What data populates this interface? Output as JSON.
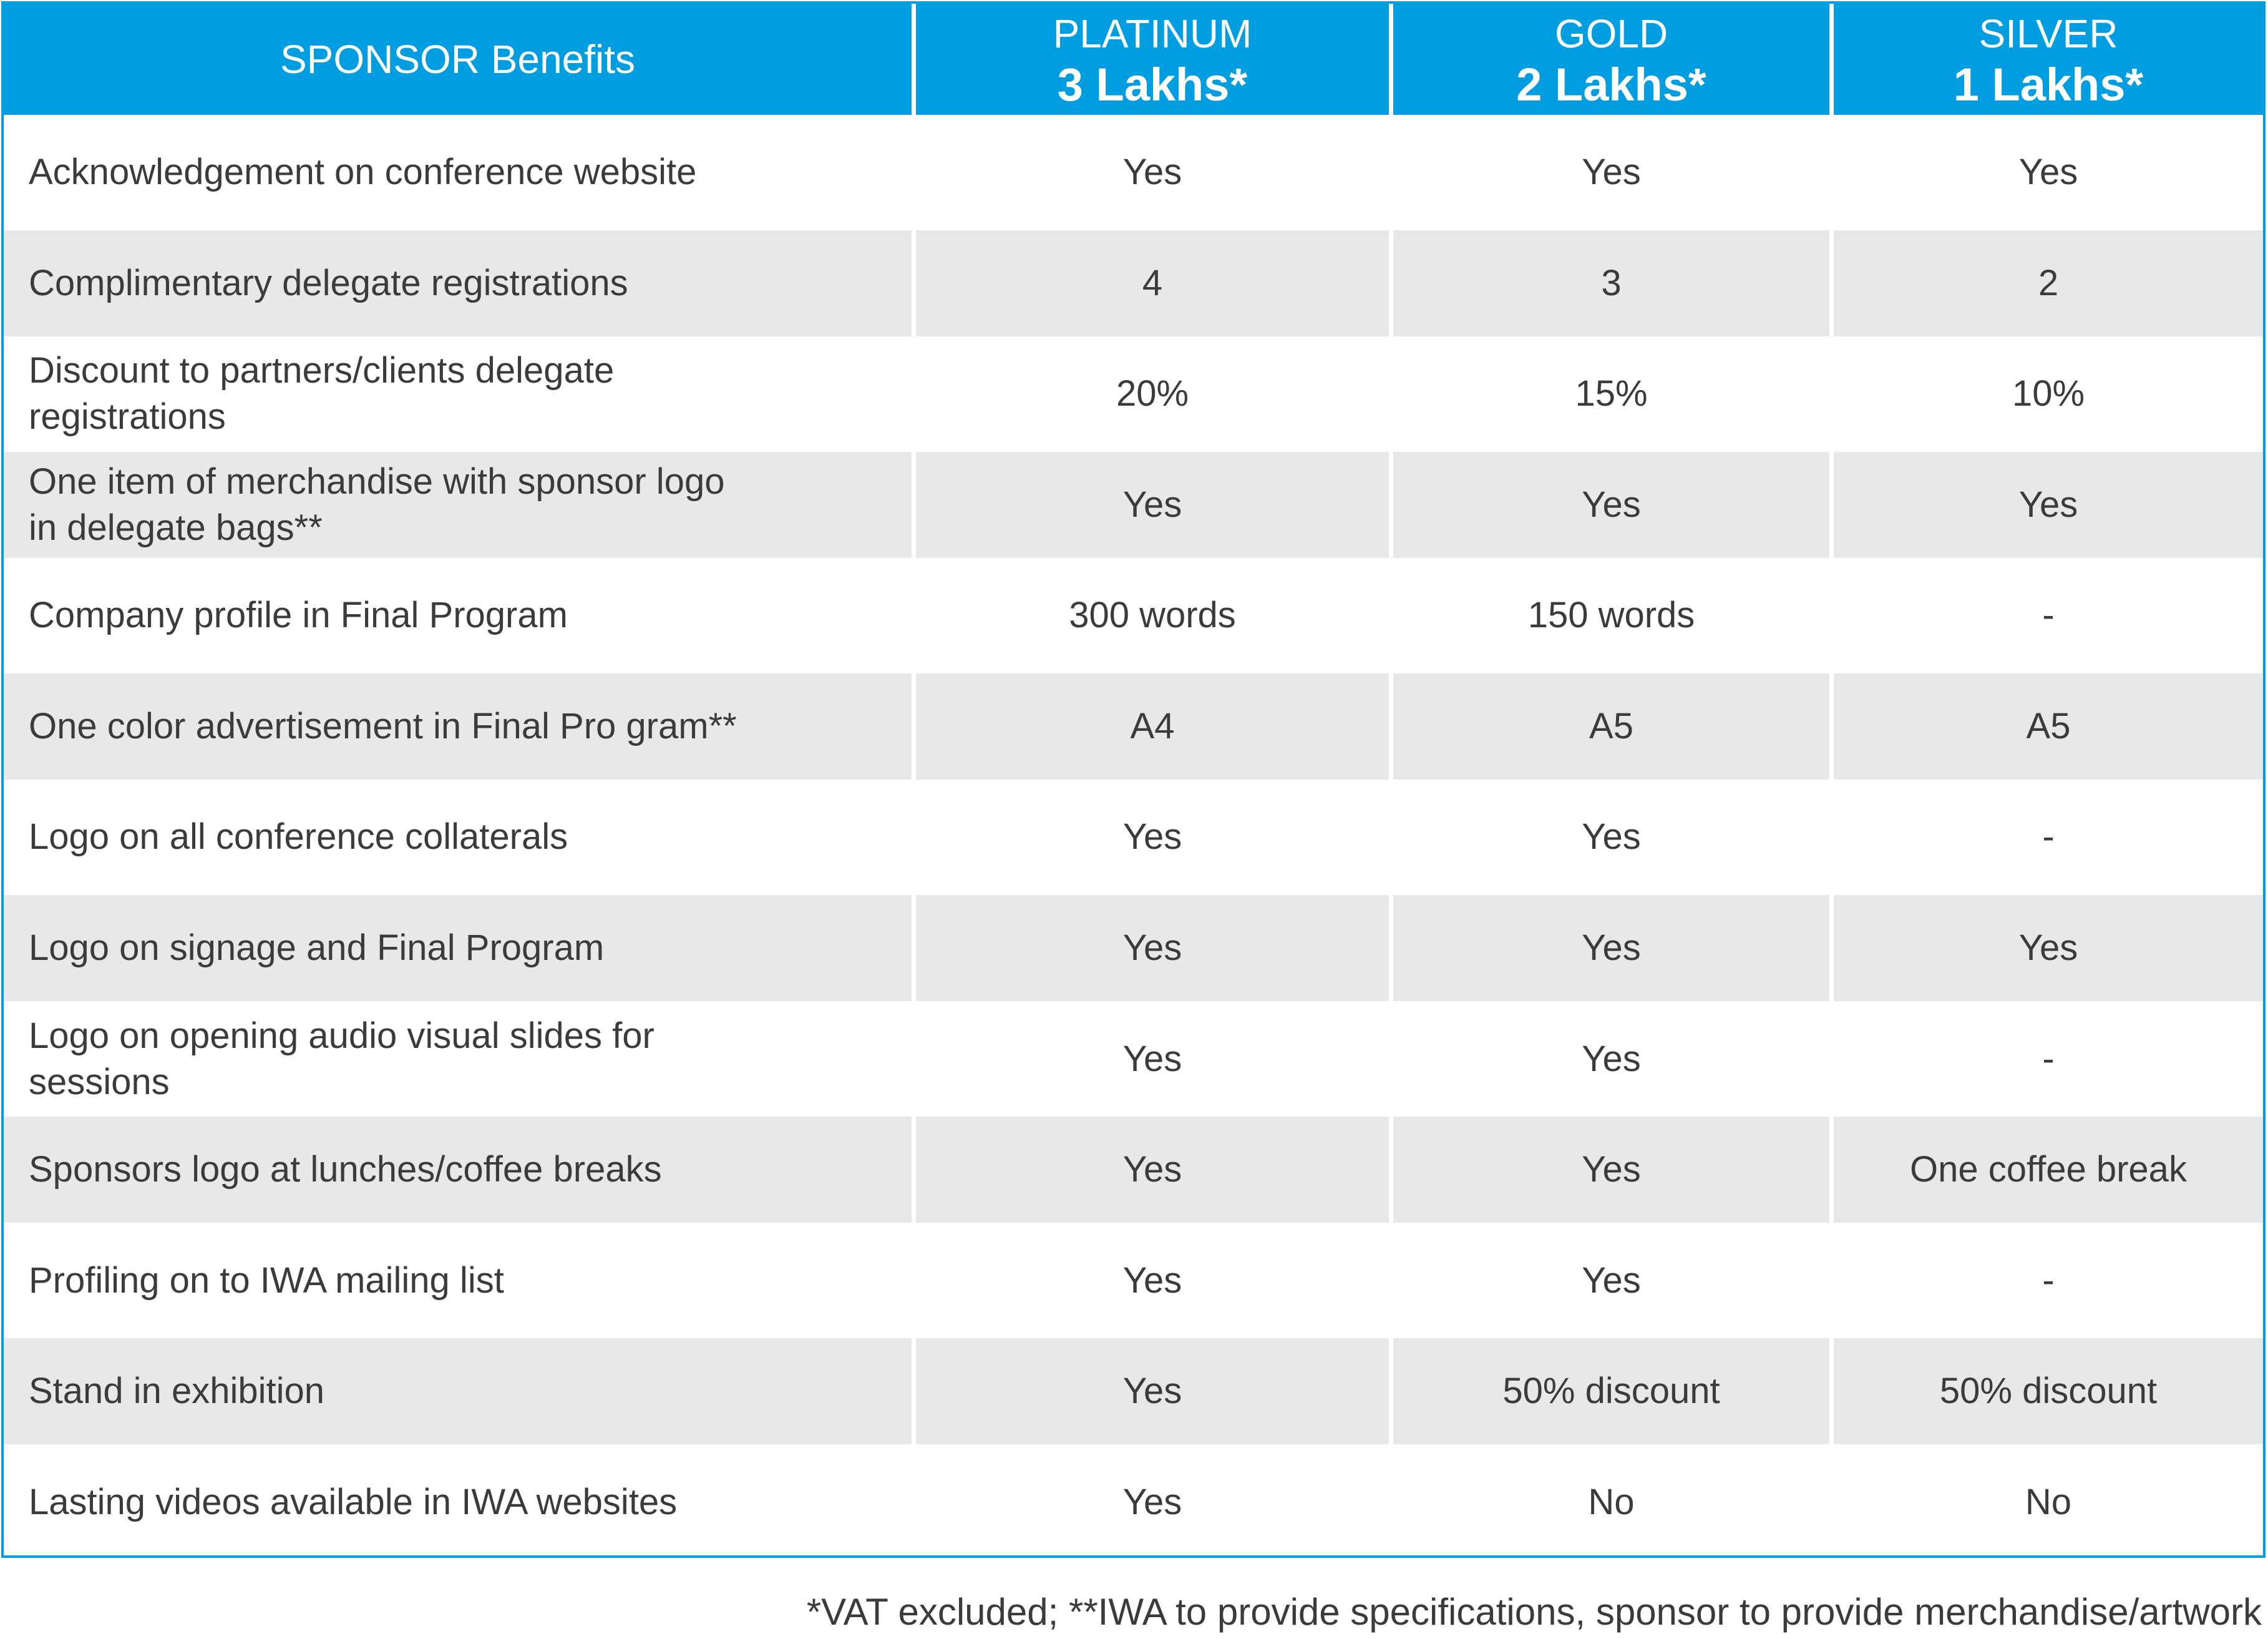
{
  "header": {
    "benefits_label": "SPONSOR Benefits",
    "tiers": [
      {
        "name": "PLATINUM",
        "price": "3 Lakhs*"
      },
      {
        "name": "GOLD",
        "price": "2 Lakhs*"
      },
      {
        "name": "SILVER",
        "price": "1 Lakhs*"
      }
    ]
  },
  "rows": [
    {
      "benefit": "Acknowledgement on conference website",
      "values": [
        "Yes",
        "Yes",
        "Yes"
      ]
    },
    {
      "benefit": "Complimentary delegate registrations",
      "values": [
        "4",
        "3",
        "2"
      ]
    },
    {
      "benefit": "Discount to partners/clients delegate registrations",
      "values": [
        "20%",
        "15%",
        "10%"
      ]
    },
    {
      "benefit": "One item of merchandise with sponsor logo in delegate bags**",
      "values": [
        "Yes",
        "Yes",
        "Yes"
      ]
    },
    {
      "benefit": "Company profile in Final Program",
      "values": [
        "300 words",
        "150 words",
        "-"
      ]
    },
    {
      "benefit": "One color advertisement in Final Pro gram**",
      "values": [
        "A4",
        "A5",
        "A5"
      ]
    },
    {
      "benefit": "Logo on all conference collaterals",
      "values": [
        "Yes",
        "Yes",
        "-"
      ]
    },
    {
      "benefit": "Logo on signage and Final Program",
      "values": [
        "Yes",
        "Yes",
        "Yes"
      ]
    },
    {
      "benefit": "Logo on opening audio visual slides for sessions",
      "values": [
        "Yes",
        "Yes",
        "-"
      ]
    },
    {
      "benefit": "Sponsors logo at lunches/coffee breaks",
      "values": [
        "Yes",
        "Yes",
        "One coffee break"
      ]
    },
    {
      "benefit": "Profiling on to IWA mailing list",
      "values": [
        "Yes",
        "Yes",
        "-"
      ]
    },
    {
      "benefit": "Stand in exhibition",
      "values": [
        "Yes",
        "50% discount",
        "50% discount"
      ]
    },
    {
      "benefit": "Lasting videos available in IWA websites",
      "values": [
        "Yes",
        "No",
        "No"
      ]
    }
  ],
  "footnote": "*VAT excluded; **IWA to provide specifications, sponsor to provide merchandise/artwork",
  "colors": {
    "header_bg": "#009de0",
    "stripe_bg": "#e7e8ea",
    "text": "#3b3b3b"
  }
}
